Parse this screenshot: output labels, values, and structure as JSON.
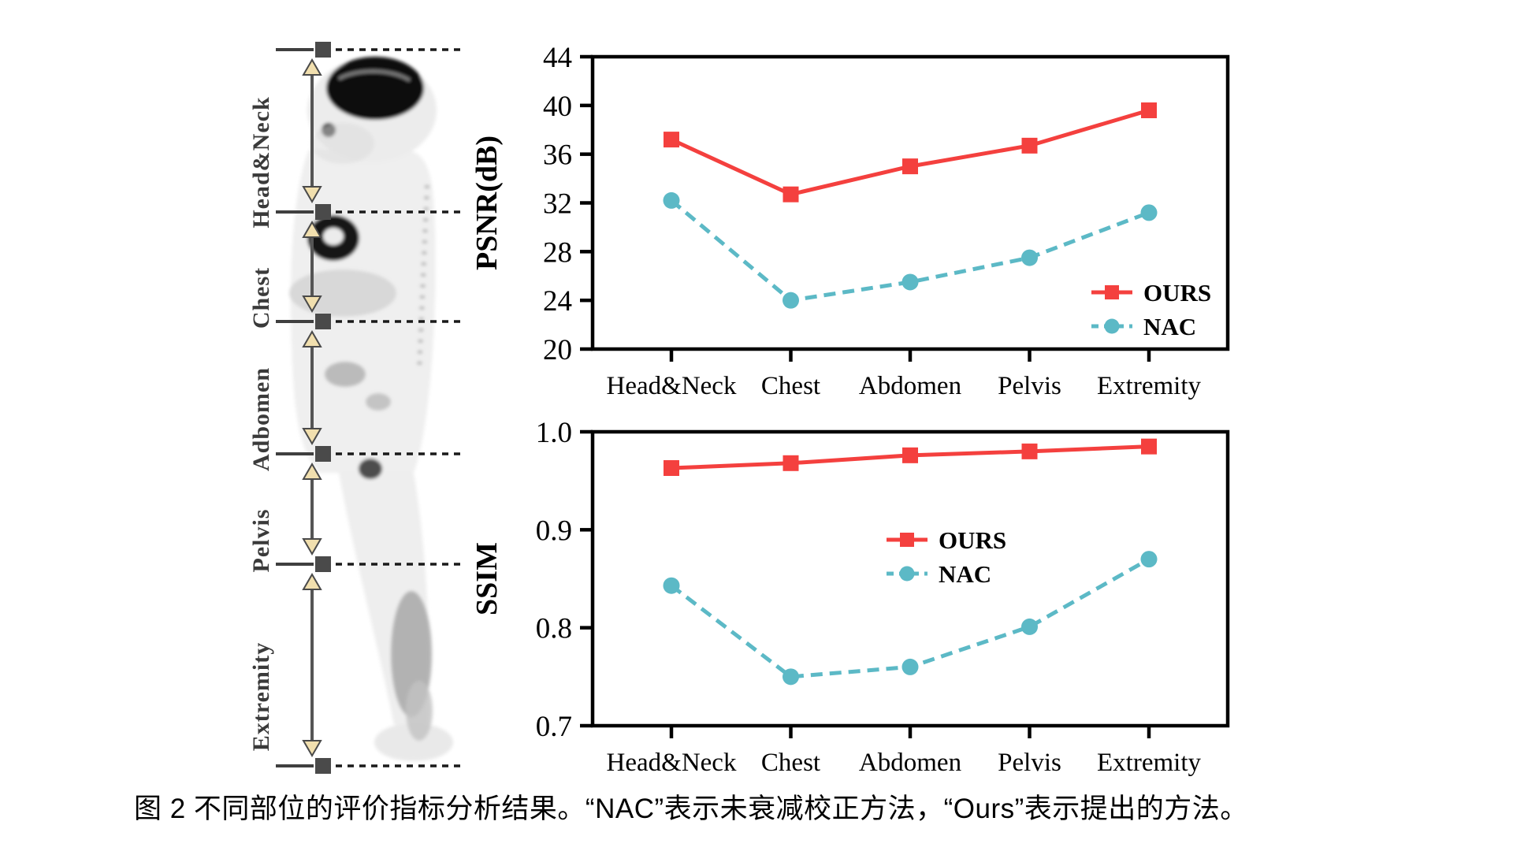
{
  "figure": {
    "left_panel": {
      "region_labels": [
        "Head&Neck",
        "Chest",
        "Adbomen",
        "Pelvis",
        "Extremity"
      ],
      "image_description": "sagittal whole-body PET scan"
    },
    "caption": "图 2 不同部位的评价指标分析结果。“NAC”表示未衰减校正方法，“Ours”表示提出的方法。"
  },
  "colors": {
    "ours_red": "#f4403e",
    "nac_teal": "#5cb9c6",
    "axis_black": "#000000",
    "annotation_gray": "#4a4a4a",
    "arrowhead_fill": "#f1dfae"
  },
  "chart_data": [
    {
      "type": "line",
      "title": "",
      "xlabel": "",
      "ylabel": "PSNR(dB)",
      "categories": [
        "Head&Neck",
        "Chest",
        "Abdomen",
        "Pelvis",
        "Extremity"
      ],
      "ylim": [
        20,
        44
      ],
      "yticks": [
        44,
        40,
        36,
        32,
        28,
        24,
        20
      ],
      "ytick_labels": [
        "44",
        "40",
        "36",
        "32",
        "28",
        "24",
        "20"
      ],
      "grid": false,
      "legend_position": "inside lower right",
      "series": [
        {
          "name": "OURS",
          "color": "#f4403e",
          "marker": "square",
          "line": "solid",
          "values": [
            37.2,
            32.7,
            35.0,
            36.7,
            39.6
          ]
        },
        {
          "name": "NAC",
          "color": "#5cb9c6",
          "marker": "circle",
          "line": "dashed",
          "values": [
            32.2,
            24.0,
            25.5,
            27.5,
            31.2
          ]
        }
      ]
    },
    {
      "type": "line",
      "title": "",
      "xlabel": "",
      "ylabel": "SSIM",
      "categories": [
        "Head&Neck",
        "Chest",
        "Abdomen",
        "Pelvis",
        "Extremity"
      ],
      "ylim": [
        0.7,
        1.0
      ],
      "yticks": [
        1.0,
        0.9,
        0.8,
        0.7
      ],
      "ytick_labels": [
        "1.0",
        "0.9",
        "0.8",
        "0.7"
      ],
      "grid": false,
      "legend_position": "inside lower right",
      "series": [
        {
          "name": "OURS",
          "color": "#f4403e",
          "marker": "square",
          "line": "solid",
          "values": [
            0.963,
            0.968,
            0.976,
            0.98,
            0.985
          ]
        },
        {
          "name": "NAC",
          "color": "#5cb9c6",
          "marker": "circle",
          "line": "dashed",
          "values": [
            0.843,
            0.75,
            0.76,
            0.801,
            0.87
          ]
        }
      ]
    }
  ]
}
